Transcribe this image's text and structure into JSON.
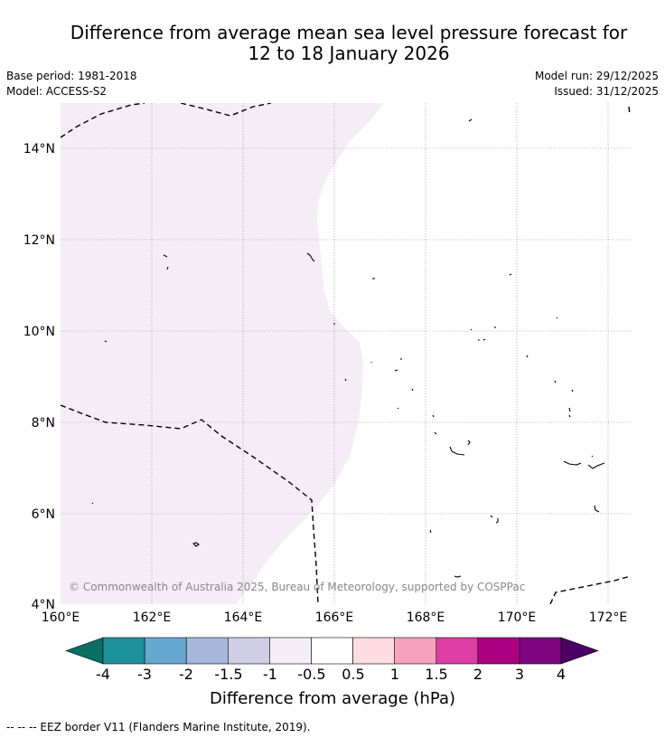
{
  "title": {
    "line1": "Difference from average mean sea level pressure forecast for",
    "line2": "12 to 18 January 2026"
  },
  "meta": {
    "base_period": "Base period: 1981-2018",
    "model": "Model: ACCESS-S2",
    "model_run": "Model run: 29/12/2025",
    "issued": "Issued: 31/12/2025"
  },
  "map": {
    "lat_labels": [
      "14°N",
      "12°N",
      "10°N",
      "8°N",
      "6°N",
      "4°N"
    ],
    "lon_labels": [
      "160°E",
      "162°E",
      "164°E",
      "166°E",
      "168°E",
      "170°E",
      "172°E"
    ],
    "shaded_anomaly_category": "-1 to -0.5",
    "copyright": "© Commonwealth of Australia 2025, Bureau of Meteorology, supported by COSPPac"
  },
  "colorbar": {
    "ticks": [
      "-4",
      "-3",
      "-2",
      "-1.5",
      "-1",
      "-0.5",
      "0.5",
      "1",
      "1.5",
      "2",
      "3",
      "4"
    ],
    "colors": [
      "#0b6d63",
      "#1e929c",
      "#67a8d3",
      "#a5b8dc",
      "#cfcfe6",
      "#f4edf6",
      "#ffffff",
      "#fddde2",
      "#f8a1bf",
      "#dd3ea3",
      "#ac0282",
      "#7e0582",
      "#4b0066"
    ],
    "label": "Difference from average (hPa)"
  },
  "footer": {
    "legend_line": "--  --  -- EEZ border V11 (Flanders Marine Institute, 2019)."
  }
}
